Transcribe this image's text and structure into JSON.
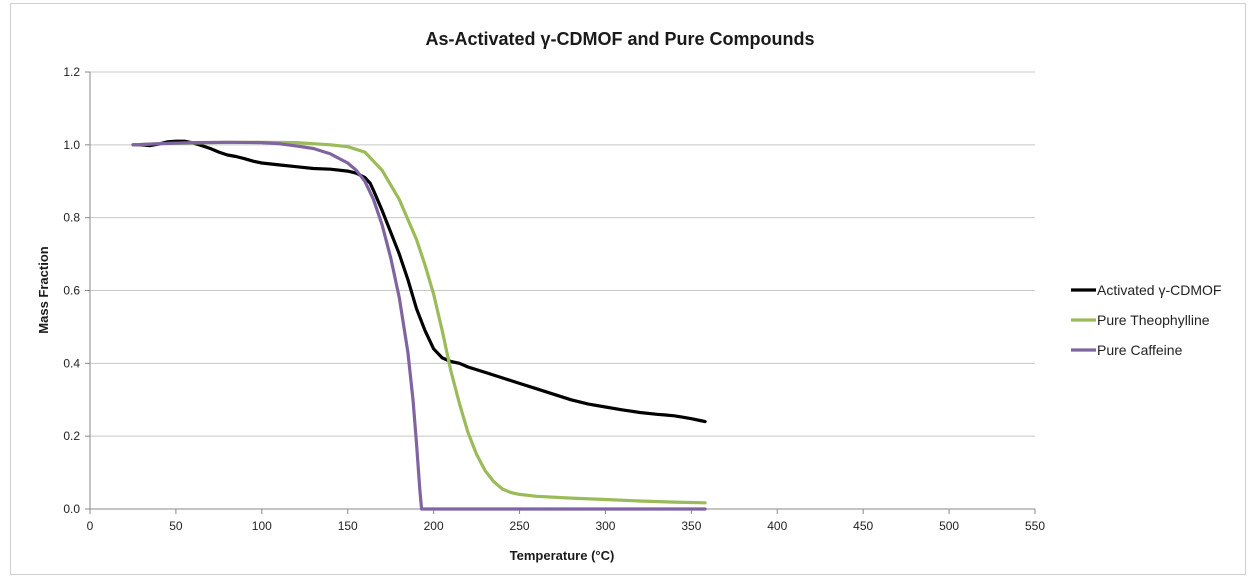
{
  "chart_data": {
    "type": "line",
    "title": "As-Activated γ-CDMOF and Pure Compounds",
    "xlabel": "Temperature (°C)",
    "ylabel": "Mass Fraction",
    "xlim": [
      0,
      550
    ],
    "ylim": [
      0,
      1.2
    ],
    "x_ticks": [
      "0",
      "50",
      "100",
      "150",
      "200",
      "250",
      "300",
      "350",
      "400",
      "450",
      "500",
      "550"
    ],
    "y_ticks": [
      "0.0",
      "0.2",
      "0.4",
      "0.6",
      "0.8",
      "1.0",
      "1.2"
    ],
    "grid": "horizontal",
    "legend_position": "right",
    "series": [
      {
        "name": "Activated γ-CDMOF",
        "color": "#000000",
        "points": [
          [
            25,
            1.0
          ],
          [
            30,
            1.0
          ],
          [
            35,
            0.998
          ],
          [
            40,
            1.002
          ],
          [
            45,
            1.008
          ],
          [
            50,
            1.01
          ],
          [
            55,
            1.01
          ],
          [
            60,
            1.005
          ],
          [
            65,
            0.998
          ],
          [
            70,
            0.99
          ],
          [
            75,
            0.98
          ],
          [
            80,
            0.972
          ],
          [
            85,
            0.968
          ],
          [
            90,
            0.962
          ],
          [
            95,
            0.955
          ],
          [
            100,
            0.95
          ],
          [
            110,
            0.945
          ],
          [
            120,
            0.94
          ],
          [
            130,
            0.935
          ],
          [
            140,
            0.933
          ],
          [
            150,
            0.928
          ],
          [
            155,
            0.922
          ],
          [
            160,
            0.91
          ],
          [
            163,
            0.895
          ],
          [
            165,
            0.875
          ],
          [
            170,
            0.82
          ],
          [
            175,
            0.76
          ],
          [
            180,
            0.7
          ],
          [
            185,
            0.63
          ],
          [
            190,
            0.55
          ],
          [
            195,
            0.49
          ],
          [
            200,
            0.44
          ],
          [
            205,
            0.415
          ],
          [
            210,
            0.405
          ],
          [
            215,
            0.4
          ],
          [
            220,
            0.39
          ],
          [
            230,
            0.375
          ],
          [
            240,
            0.36
          ],
          [
            250,
            0.345
          ],
          [
            260,
            0.33
          ],
          [
            270,
            0.315
          ],
          [
            280,
            0.3
          ],
          [
            290,
            0.288
          ],
          [
            300,
            0.28
          ],
          [
            310,
            0.272
          ],
          [
            320,
            0.265
          ],
          [
            330,
            0.26
          ],
          [
            335,
            0.258
          ],
          [
            340,
            0.256
          ],
          [
            345,
            0.252
          ],
          [
            350,
            0.248
          ],
          [
            355,
            0.243
          ],
          [
            358,
            0.24
          ]
        ]
      },
      {
        "name": "Pure Theophylline",
        "color": "#9bbb59",
        "points": [
          [
            25,
            1.0
          ],
          [
            40,
            1.003
          ],
          [
            60,
            1.005
          ],
          [
            80,
            1.007
          ],
          [
            100,
            1.007
          ],
          [
            120,
            1.006
          ],
          [
            140,
            1.0
          ],
          [
            150,
            0.995
          ],
          [
            160,
            0.98
          ],
          [
            170,
            0.93
          ],
          [
            180,
            0.85
          ],
          [
            190,
            0.74
          ],
          [
            195,
            0.67
          ],
          [
            200,
            0.59
          ],
          [
            205,
            0.49
          ],
          [
            210,
            0.38
          ],
          [
            215,
            0.29
          ],
          [
            220,
            0.21
          ],
          [
            225,
            0.15
          ],
          [
            230,
            0.105
          ],
          [
            235,
            0.075
          ],
          [
            240,
            0.055
          ],
          [
            245,
            0.045
          ],
          [
            250,
            0.04
          ],
          [
            260,
            0.035
          ],
          [
            280,
            0.03
          ],
          [
            300,
            0.026
          ],
          [
            320,
            0.022
          ],
          [
            340,
            0.019
          ],
          [
            358,
            0.017
          ]
        ]
      },
      {
        "name": "Pure Caffeine",
        "color": "#8064a2",
        "points": [
          [
            25,
            1.0
          ],
          [
            40,
            1.003
          ],
          [
            60,
            1.006
          ],
          [
            80,
            1.007
          ],
          [
            100,
            1.006
          ],
          [
            110,
            1.003
          ],
          [
            120,
            0.997
          ],
          [
            130,
            0.99
          ],
          [
            140,
            0.975
          ],
          [
            150,
            0.95
          ],
          [
            155,
            0.93
          ],
          [
            160,
            0.9
          ],
          [
            165,
            0.85
          ],
          [
            170,
            0.78
          ],
          [
            175,
            0.69
          ],
          [
            180,
            0.58
          ],
          [
            185,
            0.43
          ],
          [
            188,
            0.3
          ],
          [
            190,
            0.18
          ],
          [
            192,
            0.05
          ],
          [
            193,
            0.0
          ],
          [
            200,
            0.0
          ],
          [
            250,
            0.0
          ],
          [
            300,
            0.0
          ],
          [
            358,
            0.0
          ]
        ]
      }
    ]
  }
}
